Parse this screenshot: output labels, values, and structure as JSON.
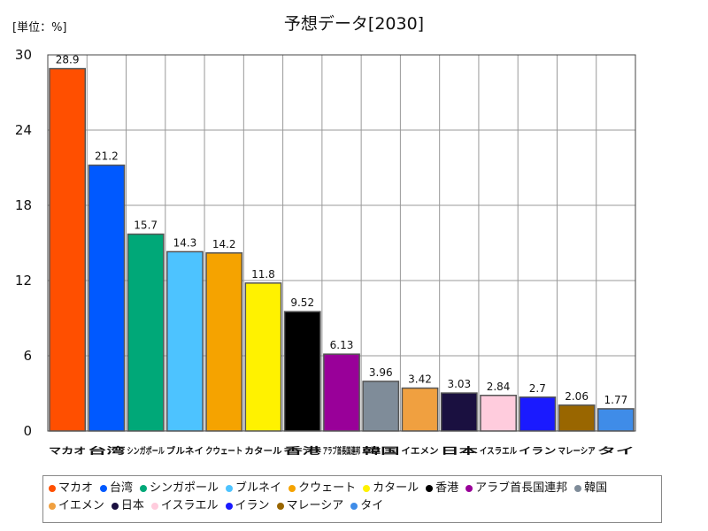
{
  "chart_data": {
    "type": "bar",
    "title": "予想データ[2030]",
    "unit_label": "[単位：%]",
    "xlabel": "",
    "ylabel": "",
    "ylim": [
      0,
      30
    ],
    "yticks": [
      0,
      6,
      12,
      18,
      24,
      30
    ],
    "grid": true,
    "legend_position": "bottom",
    "categories": [
      "マカオ",
      "台湾",
      "シンガポール",
      "ブルネイ",
      "クウェート",
      "カタール",
      "香港",
      "アラブ首長国連邦",
      "韓国",
      "イエメン",
      "日本",
      "イスラエル",
      "イラン",
      "マレーシア",
      "タイ"
    ],
    "tick_labels": [
      "マカオ",
      "台湾",
      "シンガポール",
      "ブルネイ",
      "クウェート",
      "カタール",
      "香港",
      "アラブ首長国連邦",
      "韓国",
      "イエメン",
      "日本",
      "イスラエル",
      "イラン",
      "マレーシア",
      "タイ"
    ],
    "values": [
      28.9,
      21.2,
      15.7,
      14.3,
      14.2,
      11.8,
      9.52,
      6.13,
      3.96,
      3.42,
      3.03,
      2.84,
      2.7,
      2.06,
      1.77
    ],
    "value_labels": [
      "28.9",
      "21.2",
      "15.7",
      "14.3",
      "14.2",
      "11.8",
      "9.52",
      "6.13",
      "3.96",
      "3.42",
      "3.03",
      "2.84",
      "2.7",
      "2.06",
      "1.77"
    ],
    "colors": [
      "#ff4f00",
      "#0059ff",
      "#00a878",
      "#4dc3ff",
      "#f5a300",
      "#fff200",
      "#000000",
      "#990099",
      "#7f8c99",
      "#f0a040",
      "#1a1040",
      "#ffccdd",
      "#1a1aff",
      "#996600",
      "#3f8ce8"
    ],
    "legend": [
      "マカオ",
      "台湾",
      "シンガポール",
      "ブルネイ",
      "クウェート",
      "カタール",
      "香港",
      "アラブ首長国連邦",
      "韓国",
      "イエメン",
      "日本",
      "イスラエル",
      "イラン",
      "マレーシア",
      "タイ"
    ]
  }
}
